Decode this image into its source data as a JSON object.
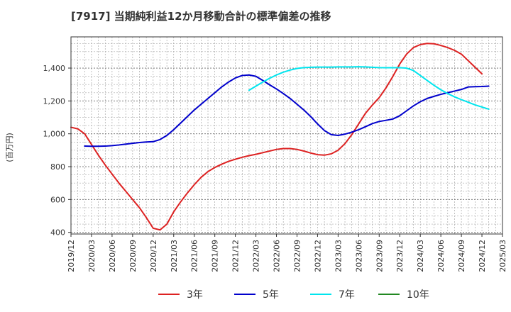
{
  "chart_data": {
    "type": "line",
    "title": "[7917]  当期純利益12か月移動合計の標準偏差の推移",
    "ylabel": "(百万円)",
    "xlabel": "",
    "ylim": [
      390,
      1590
    ],
    "yticks": [
      400,
      600,
      800,
      1000,
      1200,
      1400
    ],
    "xticks": [
      "2019/12",
      "2020/03",
      "2020/06",
      "2020/09",
      "2020/12",
      "2021/03",
      "2021/06",
      "2021/09",
      "2021/12",
      "2022/03",
      "2022/06",
      "2022/09",
      "2022/12",
      "2023/03",
      "2023/06",
      "2023/09",
      "2023/12",
      "2024/03",
      "2024/06",
      "2024/09",
      "2024/12",
      "2025/03"
    ],
    "grid": true,
    "legend_position": "bottom",
    "series": [
      {
        "name": "3年",
        "color": "#dd2222",
        "points": [
          [
            "2019/12",
            1040
          ],
          [
            "2020/01",
            1030
          ],
          [
            "2020/02",
            1000
          ],
          [
            "2020/03",
            935
          ],
          [
            "2020/04",
            870
          ],
          [
            "2020/05",
            810
          ],
          [
            "2020/06",
            755
          ],
          [
            "2020/07",
            700
          ],
          [
            "2020/08",
            650
          ],
          [
            "2020/09",
            600
          ],
          [
            "2020/10",
            550
          ],
          [
            "2020/11",
            490
          ],
          [
            "2020/12",
            425
          ],
          [
            "2021/01",
            415
          ],
          [
            "2021/02",
            450
          ],
          [
            "2021/03",
            525
          ],
          [
            "2021/04",
            585
          ],
          [
            "2021/05",
            640
          ],
          [
            "2021/06",
            690
          ],
          [
            "2021/07",
            735
          ],
          [
            "2021/08",
            770
          ],
          [
            "2021/09",
            795
          ],
          [
            "2021/10",
            815
          ],
          [
            "2021/11",
            832
          ],
          [
            "2021/12",
            845
          ],
          [
            "2022/01",
            857
          ],
          [
            "2022/02",
            867
          ],
          [
            "2022/03",
            875
          ],
          [
            "2022/04",
            885
          ],
          [
            "2022/05",
            895
          ],
          [
            "2022/06",
            905
          ],
          [
            "2022/07",
            910
          ],
          [
            "2022/08",
            910
          ],
          [
            "2022/09",
            905
          ],
          [
            "2022/10",
            895
          ],
          [
            "2022/11",
            883
          ],
          [
            "2022/12",
            873
          ],
          [
            "2023/01",
            870
          ],
          [
            "2023/02",
            878
          ],
          [
            "2023/03",
            900
          ],
          [
            "2023/04",
            940
          ],
          [
            "2023/05",
            995
          ],
          [
            "2023/06",
            1060
          ],
          [
            "2023/07",
            1125
          ],
          [
            "2023/08",
            1175
          ],
          [
            "2023/09",
            1220
          ],
          [
            "2023/10",
            1280
          ],
          [
            "2023/11",
            1350
          ],
          [
            "2023/12",
            1425
          ],
          [
            "2024/01",
            1485
          ],
          [
            "2024/02",
            1525
          ],
          [
            "2024/03",
            1543
          ],
          [
            "2024/04",
            1550
          ],
          [
            "2024/05",
            1548
          ],
          [
            "2024/06",
            1538
          ],
          [
            "2024/07",
            1525
          ],
          [
            "2024/08",
            1508
          ],
          [
            "2024/09",
            1485
          ],
          [
            "2024/10",
            1445
          ],
          [
            "2024/11",
            1405
          ],
          [
            "2024/12",
            1365
          ]
        ]
      },
      {
        "name": "5年",
        "color": "#0000cc",
        "points": [
          [
            "2020/02",
            925
          ],
          [
            "2020/03",
            924
          ],
          [
            "2020/04",
            924
          ],
          [
            "2020/05",
            925
          ],
          [
            "2020/06",
            928
          ],
          [
            "2020/07",
            932
          ],
          [
            "2020/08",
            937
          ],
          [
            "2020/09",
            942
          ],
          [
            "2020/10",
            947
          ],
          [
            "2020/11",
            950
          ],
          [
            "2020/12",
            952
          ],
          [
            "2021/01",
            965
          ],
          [
            "2021/02",
            990
          ],
          [
            "2021/03",
            1025
          ],
          [
            "2021/04",
            1065
          ],
          [
            "2021/05",
            1105
          ],
          [
            "2021/06",
            1145
          ],
          [
            "2021/07",
            1180
          ],
          [
            "2021/08",
            1215
          ],
          [
            "2021/09",
            1250
          ],
          [
            "2021/10",
            1285
          ],
          [
            "2021/11",
            1315
          ],
          [
            "2021/12",
            1340
          ],
          [
            "2022/01",
            1355
          ],
          [
            "2022/02",
            1358
          ],
          [
            "2022/03",
            1350
          ],
          [
            "2022/04",
            1325
          ],
          [
            "2022/05",
            1298
          ],
          [
            "2022/06",
            1273
          ],
          [
            "2022/07",
            1245
          ],
          [
            "2022/08",
            1215
          ],
          [
            "2022/09",
            1180
          ],
          [
            "2022/10",
            1145
          ],
          [
            "2022/11",
            1105
          ],
          [
            "2022/12",
            1060
          ],
          [
            "2023/01",
            1020
          ],
          [
            "2023/02",
            995
          ],
          [
            "2023/03",
            990
          ],
          [
            "2023/04",
            998
          ],
          [
            "2023/05",
            1010
          ],
          [
            "2023/06",
            1025
          ],
          [
            "2023/07",
            1043
          ],
          [
            "2023/08",
            1062
          ],
          [
            "2023/09",
            1075
          ],
          [
            "2023/10",
            1082
          ],
          [
            "2023/11",
            1090
          ],
          [
            "2023/12",
            1110
          ],
          [
            "2024/01",
            1140
          ],
          [
            "2024/02",
            1170
          ],
          [
            "2024/03",
            1195
          ],
          [
            "2024/04",
            1215
          ],
          [
            "2024/05",
            1228
          ],
          [
            "2024/06",
            1240
          ],
          [
            "2024/07",
            1250
          ],
          [
            "2024/08",
            1260
          ],
          [
            "2024/09",
            1270
          ],
          [
            "2024/10",
            1285
          ],
          [
            "2024/11",
            1287
          ],
          [
            "2024/12",
            1288
          ],
          [
            "2025/01",
            1290
          ]
        ]
      },
      {
        "name": "7年",
        "color": "#00e5ee",
        "points": [
          [
            "2022/02",
            1265
          ],
          [
            "2022/03",
            1290
          ],
          [
            "2022/04",
            1315
          ],
          [
            "2022/05",
            1338
          ],
          [
            "2022/06",
            1358
          ],
          [
            "2022/07",
            1375
          ],
          [
            "2022/08",
            1388
          ],
          [
            "2022/09",
            1398
          ],
          [
            "2022/10",
            1403
          ],
          [
            "2022/11",
            1405
          ],
          [
            "2022/12",
            1406
          ],
          [
            "2023/01",
            1406
          ],
          [
            "2023/02",
            1406
          ],
          [
            "2023/03",
            1407
          ],
          [
            "2023/04",
            1407
          ],
          [
            "2023/05",
            1407
          ],
          [
            "2023/06",
            1408
          ],
          [
            "2023/07",
            1407
          ],
          [
            "2023/08",
            1405
          ],
          [
            "2023/09",
            1403
          ],
          [
            "2023/10",
            1402
          ],
          [
            "2023/11",
            1402
          ],
          [
            "2023/12",
            1402
          ],
          [
            "2024/01",
            1400
          ],
          [
            "2024/02",
            1385
          ],
          [
            "2024/03",
            1355
          ],
          [
            "2024/04",
            1325
          ],
          [
            "2024/05",
            1295
          ],
          [
            "2024/06",
            1268
          ],
          [
            "2024/07",
            1245
          ],
          [
            "2024/08",
            1225
          ],
          [
            "2024/09",
            1208
          ],
          [
            "2024/10",
            1192
          ],
          [
            "2024/11",
            1176
          ],
          [
            "2024/12",
            1163
          ],
          [
            "2025/01",
            1150
          ]
        ]
      },
      {
        "name": "10年",
        "color": "#228822",
        "points": []
      }
    ]
  }
}
